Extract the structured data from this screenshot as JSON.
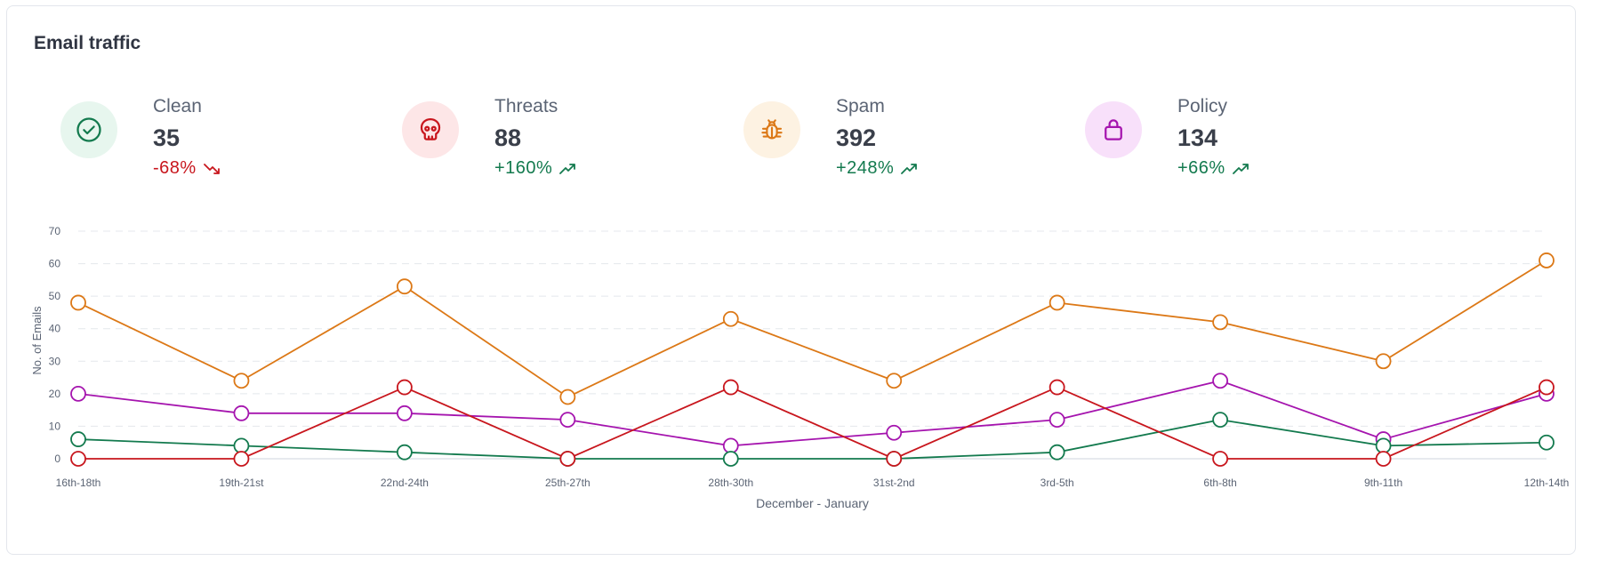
{
  "card_title": "Email traffic",
  "stats": [
    {
      "label": "Clean",
      "value": "35",
      "change": "-68%",
      "direction": "down",
      "icon": "check-circle-icon",
      "color": "#137a4e",
      "bg": "#e7f6ee"
    },
    {
      "label": "Threats",
      "value": "88",
      "change": "+160%",
      "direction": "up",
      "icon": "skull-icon",
      "color": "#c8161d",
      "bg": "#fde6e7"
    },
    {
      "label": "Spam",
      "value": "392",
      "change": "+248%",
      "direction": "up",
      "icon": "bug-icon",
      "color": "#dc7816",
      "bg": "#fdf2e2"
    },
    {
      "label": "Policy",
      "value": "134",
      "change": "+66%",
      "direction": "up",
      "icon": "lock-icon",
      "color": "#a514ae",
      "bg": "#f8e0fa"
    }
  ],
  "chart_data": {
    "type": "line",
    "xlabel": "December - January",
    "ylabel": "No. of Emails",
    "ylim": [
      0,
      70
    ],
    "yticks": [
      0,
      10,
      20,
      30,
      40,
      50,
      60,
      70
    ],
    "grid": true,
    "categories": [
      "16th-18th",
      "19th-21st",
      "22nd-24th",
      "25th-27th",
      "28th-30th",
      "31st-2nd",
      "3rd-5th",
      "6th-8th",
      "9th-11th",
      "12th-14th"
    ],
    "series": [
      {
        "name": "Spam",
        "color": "#dc7816",
        "values": [
          48,
          24,
          53,
          19,
          43,
          24,
          48,
          42,
          30,
          61
        ]
      },
      {
        "name": "Policy",
        "color": "#a514ae",
        "values": [
          20,
          14,
          14,
          12,
          4,
          8,
          12,
          24,
          6,
          20
        ]
      },
      {
        "name": "Clean",
        "color": "#137a4e",
        "values": [
          6,
          4,
          2,
          0,
          0,
          0,
          2,
          12,
          4,
          5
        ]
      },
      {
        "name": "Threats",
        "color": "#c8161d",
        "values": [
          0,
          0,
          22,
          0,
          22,
          0,
          22,
          0,
          0,
          22
        ]
      }
    ]
  }
}
